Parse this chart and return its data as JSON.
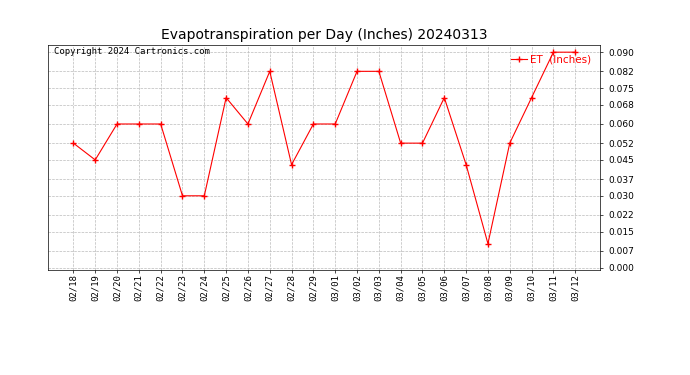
{
  "title": "Evapotranspiration per Day (Inches) 20240313",
  "copyright": "Copyright 2024 Cartronics.com",
  "legend_label": "ET  (Inches)",
  "dates": [
    "02/18",
    "02/19",
    "02/20",
    "02/21",
    "02/22",
    "02/23",
    "02/24",
    "02/25",
    "02/26",
    "02/27",
    "02/28",
    "02/29",
    "03/01",
    "03/02",
    "03/03",
    "03/04",
    "03/05",
    "03/06",
    "03/07",
    "03/08",
    "03/09",
    "03/10",
    "03/11",
    "03/12"
  ],
  "values": [
    0.052,
    0.045,
    0.06,
    0.06,
    0.06,
    0.03,
    0.03,
    0.071,
    0.06,
    0.082,
    0.043,
    0.06,
    0.06,
    0.082,
    0.082,
    0.052,
    0.052,
    0.071,
    0.043,
    0.01,
    0.052,
    0.071,
    0.09,
    0.09
  ],
  "ylim": [
    -0.001,
    0.093
  ],
  "yticks": [
    0.0,
    0.007,
    0.015,
    0.022,
    0.03,
    0.037,
    0.045,
    0.052,
    0.06,
    0.068,
    0.075,
    0.082,
    0.09
  ],
  "line_color": "red",
  "marker": "+",
  "marker_size": 4,
  "marker_edgewidth": 1.0,
  "line_width": 0.8,
  "grid_color": "#bbbbbb",
  "bg_color": "#ffffff",
  "title_fontsize": 10,
  "copyright_fontsize": 6.5,
  "legend_fontsize": 7.5,
  "legend_color": "red",
  "tick_fontsize": 6.5,
  "ylabel_fontsize": 6.5
}
